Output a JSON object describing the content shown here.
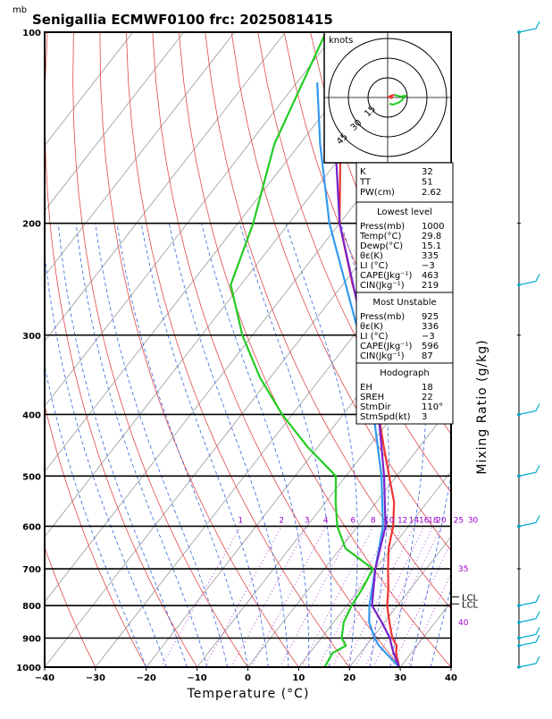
{
  "header": {
    "unit": "mb",
    "title": "Senigallia ECMWF0100  frc: 2025081415"
  },
  "chart_data": {
    "type": "line",
    "xlabel": "Temperature (°C)",
    "ylabel": "Mixing Ratio (g/kg)",
    "xlim": [
      -40,
      40
    ],
    "ylim": [
      1000,
      100
    ],
    "x_ticks": [
      "−40",
      "−30",
      "−20",
      "−10",
      "0",
      "10",
      "20",
      "30",
      "40"
    ],
    "x_tick_values": [
      -40,
      -30,
      -20,
      -10,
      0,
      10,
      20,
      30,
      40
    ],
    "pressure_ticks": [
      "100",
      "200",
      "300",
      "400",
      "500",
      "600",
      "700",
      "800",
      "900",
      "1000"
    ],
    "pressure_tick_values": [
      100,
      200,
      300,
      400,
      500,
      600,
      700,
      800,
      900,
      1000
    ],
    "mixing_ratio_labels": [
      "1",
      "2",
      "3",
      "4",
      "6",
      "8",
      "10",
      "12",
      "14",
      "16",
      "18",
      "20",
      "25",
      "30"
    ],
    "mixing_ratio_extra": [
      "35",
      "40"
    ],
    "lcl_labels": [
      "LCL",
      "LCL"
    ],
    "series": [
      {
        "name": "",
        "color": "#ee3333",
        "points": [
          [
            1000,
            29.8
          ],
          [
            950,
            27
          ],
          [
            925,
            26
          ],
          [
            900,
            24
          ],
          [
            850,
            21
          ],
          [
            800,
            18
          ],
          [
            750,
            15.5
          ],
          [
            700,
            12.5
          ],
          [
            650,
            9.5
          ],
          [
            600,
            7
          ],
          [
            550,
            3.5
          ],
          [
            500,
            -1.5
          ],
          [
            450,
            -7
          ],
          [
            400,
            -13
          ],
          [
            350,
            -19.5
          ],
          [
            300,
            -27.5
          ],
          [
            250,
            -38
          ],
          [
            200,
            -50
          ],
          [
            150,
            -62
          ],
          [
            100,
            -75
          ]
        ]
      },
      {
        "name": "",
        "color": "#22cc22",
        "points": [
          [
            1000,
            15.1
          ],
          [
            950,
            14.5
          ],
          [
            925,
            16
          ],
          [
            900,
            14
          ],
          [
            850,
            12
          ],
          [
            800,
            11
          ],
          [
            750,
            10.5
          ],
          [
            700,
            9.5
          ],
          [
            650,
            1
          ],
          [
            600,
            -4
          ],
          [
            550,
            -8
          ],
          [
            500,
            -12
          ],
          [
            450,
            -22
          ],
          [
            400,
            -32
          ],
          [
            350,
            -42
          ],
          [
            300,
            -52
          ],
          [
            250,
            -62
          ],
          [
            200,
            -67
          ],
          [
            150,
            -75
          ],
          [
            100,
            -82
          ]
        ]
      },
      {
        "name": "",
        "color": "#3399ee",
        "points": [
          [
            1000,
            29.8
          ],
          [
            950,
            25
          ],
          [
            925,
            22.5
          ],
          [
            900,
            20.5
          ],
          [
            850,
            17
          ],
          [
            800,
            14.5
          ],
          [
            700,
            10
          ],
          [
            600,
            5
          ],
          [
            500,
            -3
          ],
          [
            400,
            -14
          ],
          [
            300,
            -29
          ],
          [
            200,
            -52
          ],
          [
            150,
            -66
          ],
          [
            120,
            -76
          ]
        ]
      },
      {
        "name": "",
        "color": "#7722cc",
        "points": [
          [
            1000,
            29.8
          ],
          [
            950,
            26.5
          ],
          [
            925,
            25
          ],
          [
            900,
            23.5
          ],
          [
            850,
            19.5
          ],
          [
            800,
            15
          ],
          [
            700,
            10
          ],
          [
            600,
            5.5
          ],
          [
            500,
            -2.5
          ],
          [
            400,
            -13
          ],
          [
            300,
            -28
          ],
          [
            200,
            -50
          ],
          [
            150,
            -63
          ],
          [
            100,
            -79
          ]
        ]
      }
    ],
    "hodograph": {
      "units": "knots",
      "rings": [
        "15",
        "30",
        "45"
      ]
    }
  },
  "indices": {
    "top": [
      {
        "name": "K",
        "value": "32"
      },
      {
        "name": "TT",
        "value": "51"
      },
      {
        "name": "PW(cm)",
        "value": "2.62"
      }
    ],
    "lowest": {
      "title": "Lowest level",
      "rows": [
        {
          "name": "Press(mb)",
          "value": "1000"
        },
        {
          "name": "Temp(°C)",
          "value": "29.8"
        },
        {
          "name": "Dewp(°C)",
          "value": "15.1"
        },
        {
          "name": "θε(K)",
          "value": "335"
        },
        {
          "name": "LI (°C)",
          "value": "−3"
        },
        {
          "name": "CAPE(Jkg⁻¹)",
          "value": "463"
        },
        {
          "name": "CIN(Jkg⁻¹)",
          "value": "219"
        }
      ]
    },
    "unstable": {
      "title": "Most Unstable",
      "rows": [
        {
          "name": "Press(mb)",
          "value": "925"
        },
        {
          "name": "θε(K)",
          "value": "336"
        },
        {
          "name": "LI (°C)",
          "value": "−3"
        },
        {
          "name": "CAPE(Jkg⁻¹)",
          "value": "596"
        },
        {
          "name": "CIN(Jkg⁻¹)",
          "value": "87"
        }
      ]
    },
    "hodo": {
      "title": "Hodograph",
      "rows": [
        {
          "name": "EH",
          "value": "18"
        },
        {
          "name": "SREH",
          "value": "22"
        },
        {
          "name": "StmDir",
          "value": "110°"
        },
        {
          "name": "StmSpd(kt)",
          "value": "3"
        }
      ]
    }
  }
}
